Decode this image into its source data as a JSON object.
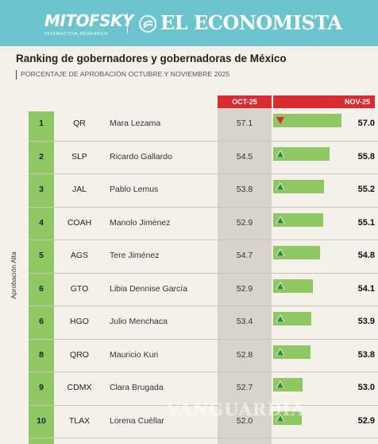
{
  "header": {
    "brand_left": "MITOFSKY",
    "brand_left_sub": "INTERACTIVA RESEARCH",
    "brand_right": "EL ECONOMISTA",
    "accent": "#6cc4ce"
  },
  "chart_data": {
    "type": "bar",
    "title": "Ranking de gobernadores y gobernadoras de México",
    "subtitle": "PORCENTAJE DE APROBACIÓN OCTUBRE Y NOVIEMBRE 2025",
    "ylabel": "Aprobación Alta",
    "columns": {
      "oct": "OCT-25",
      "nov": "NOV-25"
    },
    "colors": {
      "header": "#d92b31",
      "bar": "#8fc863",
      "up": "#2f8a3a",
      "down": "#d92b31"
    },
    "xlim": [
      50,
      57.5
    ],
    "rows": [
      {
        "rank": "1",
        "state": "QR",
        "name": "Mara Lezama",
        "oct": "57.1",
        "nov": "57.0",
        "nov_value": 57.0,
        "trend": "down"
      },
      {
        "rank": "2",
        "state": "SLP",
        "name": "Ricardo Gallardo",
        "oct": "54.5",
        "nov": "55.8",
        "nov_value": 55.8,
        "trend": "up"
      },
      {
        "rank": "3",
        "state": "JAL",
        "name": "Pablo Lemus",
        "oct": "53.8",
        "nov": "55.2",
        "nov_value": 55.2,
        "trend": "up"
      },
      {
        "rank": "4",
        "state": "COAH",
        "name": "Manolo Jiménez",
        "oct": "52.9",
        "nov": "55.1",
        "nov_value": 55.1,
        "trend": "up"
      },
      {
        "rank": "5",
        "state": "AGS",
        "name": "Tere Jiménez",
        "oct": "54.7",
        "nov": "54.8",
        "nov_value": 54.8,
        "trend": "up"
      },
      {
        "rank": "6",
        "state": "GTO",
        "name": "Libia Dennise García",
        "oct": "52.9",
        "nov": "54.1",
        "nov_value": 54.1,
        "trend": "up"
      },
      {
        "rank": "6",
        "state": "HGO",
        "name": "Julio Menchaca",
        "oct": "53.4",
        "nov": "53.9",
        "nov_value": 53.9,
        "trend": "up"
      },
      {
        "rank": "8",
        "state": "QRO",
        "name": "Mauricio Kuri",
        "oct": "52.8",
        "nov": "53.8",
        "nov_value": 53.8,
        "trend": "up"
      },
      {
        "rank": "9",
        "state": "CDMX",
        "name": "Clara Brugada",
        "oct": "52.7",
        "nov": "53.0",
        "nov_value": 53.0,
        "trend": "up"
      },
      {
        "rank": "10",
        "state": "TLAX",
        "name": "Lorena Cuéllar",
        "oct": "52.0",
        "nov": "52.9",
        "nov_value": 52.9,
        "trend": "up"
      }
    ]
  },
  "watermark": "VANGUARDIA"
}
